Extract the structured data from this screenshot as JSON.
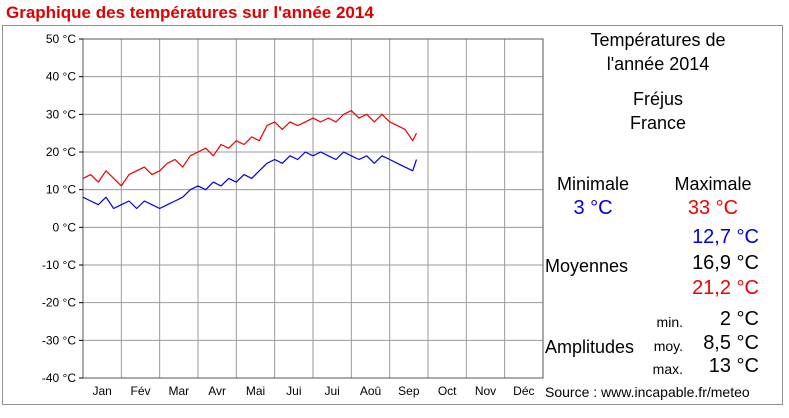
{
  "page": {
    "title": "Graphique des températures sur l'année 2014"
  },
  "panel": {
    "heading_line1": "Températures de",
    "heading_line2": "l'année 2014",
    "city": "Fréjus",
    "country": "France",
    "min_label": "Minimale",
    "max_label": "Maximale",
    "min_value": "3 °C",
    "max_value": "33 °C",
    "moyennes_label": "Moyennes",
    "moy_min": "12,7 °C",
    "moy_mean": "16,9 °C",
    "moy_max": "21,2 °C",
    "amplitudes_label": "Amplitudes",
    "amp_min_label": "min.",
    "amp_moy_label": "moy.",
    "amp_max_label": "max.",
    "amp_min": "2 °C",
    "amp_moy": "8,5 °C",
    "amp_max": "13 °C",
    "source": "Source : www.incapable.fr/meteo"
  },
  "colors": {
    "title": "#e00000",
    "min_series": "#0000dd",
    "max_series": "#ee0000",
    "grid": "#9a9a9a",
    "text": "#000000"
  },
  "chart_data": {
    "type": "line",
    "title": "Graphique des températures sur l'année 2014",
    "xlabel": "",
    "ylabel": "",
    "ylim": [
      -40,
      50
    ],
    "xlim": [
      0,
      12
    ],
    "grid": true,
    "x_tick_labels": [
      "Jan",
      "Fév",
      "Mar",
      "Avr",
      "Mai",
      "Jui",
      "Jui",
      "Aoû",
      "Sep",
      "Oct",
      "Nov",
      "Déc"
    ],
    "y_tick_labels": [
      "50 °C",
      "40 °C",
      "30 °C",
      "20 °C",
      "10 °C",
      "0 °C",
      "-10 °C",
      "-20 °C",
      "-30 °C",
      "-40 °C"
    ],
    "y_ticks": [
      50,
      40,
      30,
      20,
      10,
      0,
      -10,
      -20,
      -30,
      -40
    ],
    "series": [
      {
        "color": "#ee0000",
        "x": [
          0.0,
          0.2,
          0.4,
          0.6,
          0.8,
          1.0,
          1.2,
          1.4,
          1.6,
          1.8,
          2.0,
          2.2,
          2.4,
          2.6,
          2.8,
          3.0,
          3.2,
          3.4,
          3.6,
          3.8,
          4.0,
          4.2,
          4.4,
          4.6,
          4.8,
          5.0,
          5.2,
          5.4,
          5.6,
          5.8,
          6.0,
          6.2,
          6.4,
          6.6,
          6.8,
          7.0,
          7.2,
          7.4,
          7.6,
          7.8,
          8.0,
          8.2,
          8.4,
          8.6,
          8.7
        ],
        "values": [
          13,
          14,
          12,
          15,
          13,
          11,
          14,
          15,
          16,
          14,
          15,
          17,
          18,
          16,
          19,
          20,
          21,
          19,
          22,
          21,
          23,
          22,
          24,
          23,
          27,
          28,
          26,
          28,
          27,
          28,
          29,
          28,
          29,
          28,
          30,
          31,
          29,
          30,
          28,
          30,
          28,
          27,
          26,
          23,
          25
        ]
      },
      {
        "color": "#0000dd",
        "x": [
          0.0,
          0.2,
          0.4,
          0.6,
          0.8,
          1.0,
          1.2,
          1.4,
          1.6,
          1.8,
          2.0,
          2.2,
          2.4,
          2.6,
          2.8,
          3.0,
          3.2,
          3.4,
          3.6,
          3.8,
          4.0,
          4.2,
          4.4,
          4.6,
          4.8,
          5.0,
          5.2,
          5.4,
          5.6,
          5.8,
          6.0,
          6.2,
          6.4,
          6.6,
          6.8,
          7.0,
          7.2,
          7.4,
          7.6,
          7.8,
          8.0,
          8.2,
          8.4,
          8.6,
          8.7
        ],
        "values": [
          8,
          7,
          6,
          8,
          5,
          6,
          7,
          5,
          7,
          6,
          5,
          6,
          7,
          8,
          10,
          11,
          10,
          12,
          11,
          13,
          12,
          14,
          13,
          15,
          17,
          18,
          17,
          19,
          18,
          20,
          19,
          20,
          19,
          18,
          20,
          19,
          18,
          19,
          17,
          19,
          18,
          17,
          16,
          15,
          18
        ]
      }
    ]
  }
}
